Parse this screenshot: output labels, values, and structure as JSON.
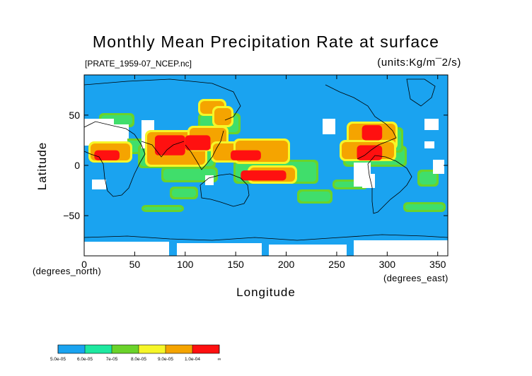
{
  "chart_data": {
    "type": "heatmap",
    "title": "Monthly Mean Precipitation Rate at surface",
    "source_file": "[PRATE_1959-07_NCEP.nc]",
    "units": "(units:Kg/m¯2/s)",
    "xlabel": "Longitude",
    "ylabel": "Latitude",
    "x_unit_label": "(degrees_east)",
    "y_unit_label": "(degrees_north)",
    "x_range": [
      0,
      360
    ],
    "y_range": [
      -90,
      90
    ],
    "x_ticks": [
      0,
      50,
      100,
      150,
      200,
      250,
      300,
      350
    ],
    "x_tick_labels": [
      "0",
      "50",
      "100",
      "150",
      "200",
      "250",
      "300",
      "350"
    ],
    "y_ticks": [
      50,
      0,
      -50
    ],
    "y_tick_labels": [
      "50",
      "0",
      "−50"
    ],
    "colorbar": {
      "boundaries": [
        "5.0e-05",
        "6.0e-05",
        "7e-05",
        "8.0e-05",
        "9.0e-05",
        "1.0e-04",
        "∞"
      ],
      "colors": [
        "#1aa3f0",
        "#1ee8a0",
        "#6ad32a",
        "#f6f628",
        "#f5a400",
        "#ff1010"
      ],
      "fill_levels": [
        5e-05,
        6e-05,
        7e-05,
        8e-05,
        9e-05,
        0.0001
      ],
      "background_color": "#1aa3f0",
      "missing_color": "#ffffff"
    },
    "high_precip_regions": [
      {
        "lon": [
          70,
          100
        ],
        "lat": [
          10,
          30
        ],
        "level": 5
      },
      {
        "lon": [
          100,
          125
        ],
        "lat": [
          15,
          30
        ],
        "level": 5
      },
      {
        "lon": [
          145,
          175
        ],
        "lat": [
          5,
          15
        ],
        "level": 5
      },
      {
        "lon": [
          275,
          295
        ],
        "lat": [
          25,
          40
        ],
        "level": 5
      },
      {
        "lon": [
          270,
          295
        ],
        "lat": [
          5,
          20
        ],
        "level": 5
      },
      {
        "lon": [
          10,
          35
        ],
        "lat": [
          5,
          15
        ],
        "level": 5
      },
      {
        "lon": [
          155,
          200
        ],
        "lat": [
          -15,
          -5
        ],
        "level": 5
      }
    ]
  }
}
